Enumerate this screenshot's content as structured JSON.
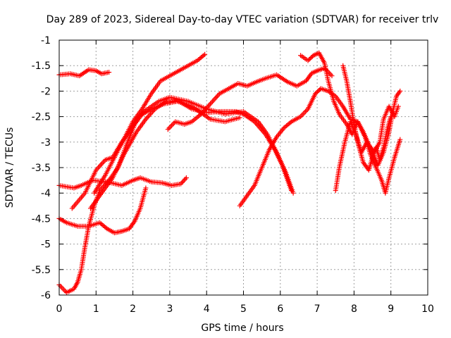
{
  "chart_data": {
    "type": "scatter",
    "title": "Day 289 of 2023, Sidereal Day-to-day VTEC variation (SDTVAR) for receiver trlv",
    "xlabel": "GPS time / hours",
    "ylabel": "SDTVAR / TECUs",
    "xlim": [
      0,
      10
    ],
    "ylim": [
      -6,
      -1
    ],
    "xticks": [
      0,
      1,
      2,
      3,
      4,
      5,
      6,
      7,
      8,
      9,
      10
    ],
    "yticks": [
      -6,
      -5.5,
      -5,
      -4.5,
      -4,
      -3.5,
      -3,
      -2.5,
      -2,
      -1.5,
      -1
    ],
    "xtick_labels": [
      "0",
      "1",
      "2",
      "3",
      "4",
      "5",
      "6",
      "7",
      "8",
      "9",
      "10"
    ],
    "ytick_labels": [
      "-6",
      "-5.5",
      "-5",
      "-4.5",
      "-4",
      "-3.5",
      "-3",
      "-2.5",
      "-2",
      "-1.5",
      "-1"
    ],
    "grid": true,
    "marker": "+",
    "marker_color": "#ff0000",
    "series": [
      {
        "values": [
          [
            0,
            -1.68
          ],
          [
            0.3,
            -1.66
          ],
          [
            0.55,
            -1.7
          ],
          [
            0.8,
            -1.58
          ],
          [
            1.0,
            -1.6
          ],
          [
            1.15,
            -1.66
          ],
          [
            1.35,
            -1.63
          ]
        ]
      },
      {
        "values": [
          [
            0,
            -3.85
          ],
          [
            0.4,
            -3.9
          ],
          [
            0.6,
            -3.85
          ],
          [
            0.9,
            -3.75
          ],
          [
            1.3,
            -3.78
          ],
          [
            1.7,
            -3.85
          ],
          [
            2.0,
            -3.75
          ],
          [
            2.2,
            -3.7
          ],
          [
            2.5,
            -3.78
          ],
          [
            2.8,
            -3.8
          ],
          [
            3.05,
            -3.85
          ],
          [
            3.3,
            -3.82
          ],
          [
            3.45,
            -3.7
          ]
        ]
      },
      {
        "values": [
          [
            0,
            -4.5
          ],
          [
            0.2,
            -4.58
          ],
          [
            0.5,
            -4.65
          ],
          [
            0.8,
            -4.65
          ],
          [
            1.1,
            -4.58
          ],
          [
            1.3,
            -4.7
          ],
          [
            1.5,
            -4.78
          ],
          [
            1.7,
            -4.75
          ],
          [
            1.9,
            -4.7
          ],
          [
            2.05,
            -4.55
          ],
          [
            2.2,
            -4.3
          ],
          [
            2.35,
            -3.9
          ]
        ]
      },
      {
        "values": [
          [
            0,
            -5.8
          ],
          [
            0.2,
            -5.95
          ],
          [
            0.4,
            -5.88
          ],
          [
            0.5,
            -5.75
          ],
          [
            0.6,
            -5.5
          ],
          [
            0.7,
            -5.05
          ],
          [
            0.8,
            -4.65
          ],
          [
            0.95,
            -4.25
          ],
          [
            1.1,
            -3.95
          ],
          [
            1.35,
            -3.75
          ],
          [
            1.6,
            -3.5
          ],
          [
            1.8,
            -3.1
          ],
          [
            2.05,
            -2.65
          ],
          [
            2.3,
            -2.4
          ],
          [
            2.7,
            -2.2
          ],
          [
            3.0,
            -2.12
          ],
          [
            3.5,
            -2.2
          ],
          [
            4.0,
            -2.35
          ],
          [
            4.5,
            -2.45
          ],
          [
            5.0,
            -2.4
          ],
          [
            5.4,
            -2.6
          ],
          [
            5.65,
            -2.85
          ],
          [
            5.9,
            -3.2
          ],
          [
            6.15,
            -3.6
          ],
          [
            6.35,
            -4.0
          ]
        ]
      },
      {
        "values": [
          [
            0.35,
            -4.3
          ],
          [
            0.7,
            -4.0
          ],
          [
            1.0,
            -3.55
          ],
          [
            1.25,
            -3.35
          ],
          [
            1.45,
            -3.3
          ],
          [
            1.7,
            -3.0
          ],
          [
            1.95,
            -2.75
          ],
          [
            2.15,
            -2.5
          ],
          [
            2.5,
            -2.35
          ],
          [
            2.85,
            -2.25
          ],
          [
            3.2,
            -2.2
          ],
          [
            3.6,
            -2.3
          ],
          [
            4.1,
            -2.55
          ],
          [
            4.5,
            -2.6
          ],
          [
            4.9,
            -2.52
          ]
        ]
      },
      {
        "values": [
          [
            0.85,
            -4.3
          ],
          [
            1.2,
            -3.95
          ],
          [
            1.45,
            -3.7
          ],
          [
            1.75,
            -3.25
          ],
          [
            2.1,
            -2.8
          ],
          [
            2.35,
            -2.55
          ],
          [
            2.6,
            -2.35
          ],
          [
            2.9,
            -2.2
          ],
          [
            3.25,
            -2.2
          ],
          [
            3.6,
            -2.35
          ],
          [
            4.0,
            -2.42
          ],
          [
            4.4,
            -2.4
          ],
          [
            4.8,
            -2.4
          ],
          [
            5.0,
            -2.45
          ],
          [
            5.3,
            -2.6
          ],
          [
            5.6,
            -2.85
          ],
          [
            5.85,
            -3.15
          ],
          [
            6.05,
            -3.45
          ],
          [
            6.3,
            -3.95
          ]
        ]
      },
      {
        "values": [
          [
            0.95,
            -4.0
          ],
          [
            1.25,
            -3.65
          ],
          [
            1.5,
            -3.3
          ],
          [
            1.75,
            -2.95
          ],
          [
            2.0,
            -2.6
          ],
          [
            2.25,
            -2.35
          ],
          [
            2.5,
            -2.05
          ],
          [
            2.75,
            -1.8
          ],
          [
            3.0,
            -1.7
          ],
          [
            3.25,
            -1.6
          ],
          [
            3.5,
            -1.5
          ],
          [
            3.75,
            -1.4
          ],
          [
            3.95,
            -1.28
          ]
        ]
      },
      {
        "values": [
          [
            2.95,
            -2.75
          ],
          [
            3.15,
            -2.6
          ],
          [
            3.4,
            -2.65
          ],
          [
            3.6,
            -2.6
          ],
          [
            3.85,
            -2.45
          ],
          [
            4.1,
            -2.25
          ],
          [
            4.35,
            -2.05
          ],
          [
            4.6,
            -1.95
          ],
          [
            4.85,
            -1.85
          ],
          [
            5.1,
            -1.9
          ],
          [
            5.35,
            -1.82
          ],
          [
            5.6,
            -1.75
          ],
          [
            5.9,
            -1.68
          ],
          [
            6.2,
            -1.82
          ],
          [
            6.45,
            -1.9
          ],
          [
            6.7,
            -1.8
          ],
          [
            6.85,
            -1.65
          ],
          [
            7.0,
            -1.6
          ],
          [
            7.2,
            -1.55
          ],
          [
            7.4,
            -1.7
          ]
        ]
      },
      {
        "values": [
          [
            4.9,
            -4.25
          ],
          [
            5.1,
            -4.05
          ],
          [
            5.3,
            -3.85
          ],
          [
            5.5,
            -3.5
          ],
          [
            5.7,
            -3.15
          ],
          [
            5.9,
            -2.9
          ],
          [
            6.1,
            -2.72
          ],
          [
            6.3,
            -2.6
          ],
          [
            6.55,
            -2.5
          ],
          [
            6.75,
            -2.35
          ],
          [
            6.95,
            -2.05
          ],
          [
            7.1,
            -1.95
          ],
          [
            7.3,
            -2.0
          ],
          [
            7.5,
            -2.1
          ],
          [
            7.7,
            -2.3
          ],
          [
            7.9,
            -2.55
          ],
          [
            8.1,
            -2.6
          ],
          [
            8.3,
            -2.9
          ],
          [
            8.45,
            -3.25
          ],
          [
            8.6,
            -3.5
          ],
          [
            8.75,
            -3.75
          ],
          [
            8.85,
            -4.0
          ],
          [
            8.95,
            -3.7
          ],
          [
            9.1,
            -3.3
          ],
          [
            9.25,
            -2.95
          ]
        ]
      },
      {
        "values": [
          [
            6.55,
            -1.3
          ],
          [
            6.75,
            -1.4
          ],
          [
            6.9,
            -1.3
          ],
          [
            7.05,
            -1.25
          ],
          [
            7.2,
            -1.45
          ],
          [
            7.3,
            -1.8
          ],
          [
            7.45,
            -2.2
          ],
          [
            7.6,
            -2.45
          ],
          [
            7.8,
            -2.65
          ],
          [
            7.95,
            -2.85
          ],
          [
            8.1,
            -2.6
          ],
          [
            8.25,
            -2.8
          ],
          [
            8.4,
            -3.05
          ],
          [
            8.55,
            -3.2
          ],
          [
            8.7,
            -3.0
          ],
          [
            8.8,
            -2.55
          ],
          [
            8.95,
            -2.3
          ],
          [
            9.1,
            -2.5
          ],
          [
            9.2,
            -2.3
          ]
        ]
      },
      {
        "values": [
          [
            7.5,
            -3.95
          ],
          [
            7.6,
            -3.5
          ],
          [
            7.75,
            -3.0
          ],
          [
            7.9,
            -2.6
          ],
          [
            8.05,
            -2.85
          ],
          [
            8.2,
            -3.2
          ],
          [
            8.35,
            -3.0
          ],
          [
            8.5,
            -3.2
          ],
          [
            8.65,
            -3.45
          ],
          [
            8.8,
            -3.2
          ],
          [
            8.95,
            -2.8
          ],
          [
            9.05,
            -2.4
          ],
          [
            9.15,
            -2.1
          ],
          [
            9.25,
            -2.0
          ]
        ]
      },
      {
        "values": [
          [
            7.7,
            -1.5
          ],
          [
            7.8,
            -1.8
          ],
          [
            7.9,
            -2.2
          ],
          [
            8.0,
            -2.65
          ],
          [
            8.1,
            -3.0
          ],
          [
            8.25,
            -3.4
          ],
          [
            8.4,
            -3.55
          ],
          [
            8.5,
            -3.3
          ],
          [
            8.6,
            -3.1
          ],
          [
            8.7,
            -3.35
          ],
          [
            8.8,
            -3.1
          ],
          [
            8.9,
            -2.75
          ],
          [
            9.0,
            -2.5
          ]
        ]
      }
    ]
  }
}
